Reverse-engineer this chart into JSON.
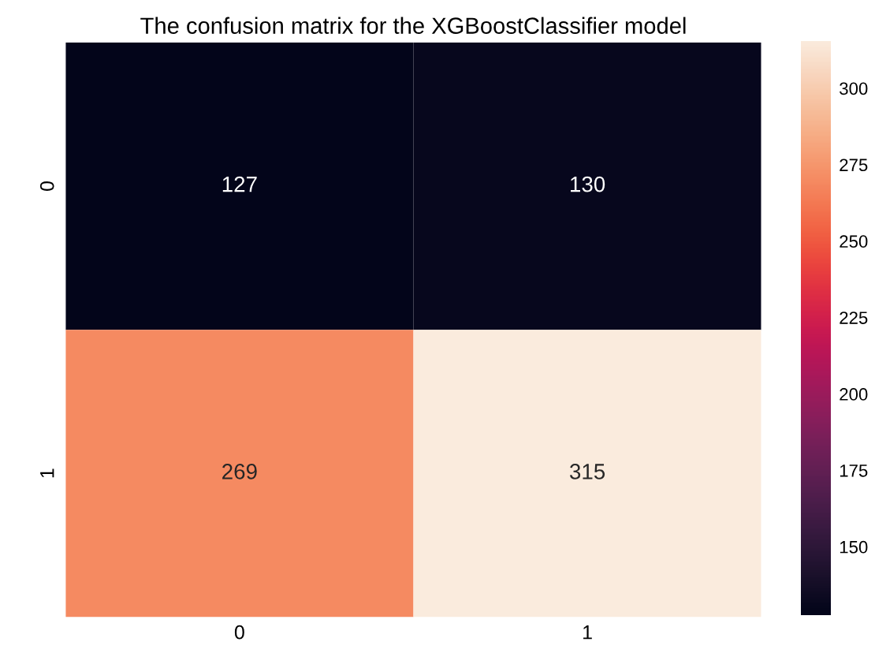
{
  "chart_data": {
    "type": "heatmap",
    "title": "The confusion matrix for the XGBoostClassifier model",
    "categories": [
      "0",
      "1"
    ],
    "y_categories": [
      "0",
      "1"
    ],
    "cells": [
      [
        127,
        130
      ],
      [
        269,
        315
      ]
    ],
    "data_labels": true,
    "clim": [
      127,
      315
    ],
    "cticks": [
      150,
      175,
      200,
      225,
      250,
      275,
      300
    ]
  }
}
